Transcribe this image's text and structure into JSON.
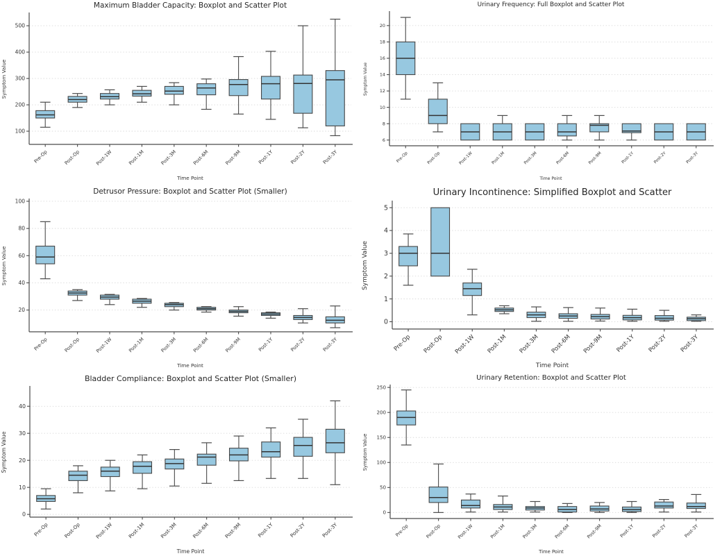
{
  "figure": {
    "background": "#ffffff",
    "palette": {
      "box_fill": "#97c8e0",
      "box_edge": "#454545",
      "median_line": "#333333",
      "whisker": "#4a4a4a",
      "grid_line": "#d9d9d9",
      "axis_line": "#4a4a4a",
      "tick_text": "#333333",
      "title_text": "#262626"
    }
  },
  "chart_data": [
    {
      "type": "boxplot",
      "title": "Maximum Bladder Capacity: Boxplot and Scatter Plot",
      "xlabel": "Time Point",
      "ylabel": "Symptom Value",
      "categories": [
        "Pre-Op",
        "Post-Op",
        "Post-1W",
        "Post-1M",
        "Post-3M",
        "Post-6M",
        "Post-9M",
        "Post-1Y",
        "Post-2Y",
        "Post-3Y"
      ],
      "yticks": [
        100,
        200,
        300,
        400,
        500
      ],
      "ylim": [
        50,
        545
      ],
      "grid": "dotted-horizontal",
      "legend": "none",
      "font_scale": 1.0,
      "boxes": [
        {
          "low": 115,
          "q1": 150,
          "med": 162,
          "q3": 178,
          "high": 210
        },
        {
          "low": 190,
          "q1": 210,
          "med": 220,
          "q3": 232,
          "high": 243
        },
        {
          "low": 200,
          "q1": 222,
          "med": 231,
          "q3": 243,
          "high": 257
        },
        {
          "low": 210,
          "q1": 233,
          "med": 242,
          "q3": 255,
          "high": 270
        },
        {
          "low": 200,
          "q1": 240,
          "med": 252,
          "q3": 270,
          "high": 284
        },
        {
          "low": 183,
          "q1": 238,
          "med": 264,
          "q3": 280,
          "high": 298
        },
        {
          "low": 165,
          "q1": 235,
          "med": 277,
          "q3": 296,
          "high": 383
        },
        {
          "low": 145,
          "q1": 222,
          "med": 280,
          "q3": 308,
          "high": 403
        },
        {
          "low": 113,
          "q1": 168,
          "med": 281,
          "q3": 313,
          "high": 500
        },
        {
          "low": 83,
          "q1": 120,
          "med": 295,
          "q3": 330,
          "high": 525
        }
      ]
    },
    {
      "type": "boxplot",
      "title": "Urinary Frequency: Full Boxplot and Scatter Plot",
      "xlabel": "Time Point",
      "ylabel": "Symptom Value",
      "categories": [
        "Pre-Op",
        "Post-Op",
        "Post-1W",
        "Post-1M",
        "Post-3M",
        "Post-6M",
        "Post-9M",
        "Post-1Y",
        "Post-2Y",
        "Post-3Y"
      ],
      "yticks": [
        6,
        8,
        10,
        12,
        14,
        16,
        18,
        20
      ],
      "ylim": [
        5.3,
        21.6
      ],
      "grid": "dotted-horizontal",
      "legend": "none",
      "font_scale": 0.85,
      "boxes": [
        {
          "low": 11,
          "q1": 14,
          "med": 16,
          "q3": 18,
          "high": 21
        },
        {
          "low": 7,
          "q1": 8,
          "med": 9,
          "q3": 11,
          "high": 13
        },
        {
          "low": 6,
          "q1": 6,
          "med": 7,
          "q3": 8,
          "high": 8
        },
        {
          "low": 6,
          "q1": 6,
          "med": 7,
          "q3": 8,
          "high": 9
        },
        {
          "low": 6,
          "q1": 6,
          "med": 7,
          "q3": 8,
          "high": 8
        },
        {
          "low": 6,
          "q1": 6.5,
          "med": 7,
          "q3": 8,
          "high": 9
        },
        {
          "low": 6,
          "q1": 7,
          "med": 7.8,
          "q3": 8,
          "high": 9
        },
        {
          "low": 6,
          "q1": 6.9,
          "med": 7.1,
          "q3": 8,
          "high": 8
        },
        {
          "low": 6,
          "q1": 6,
          "med": 7,
          "q3": 8,
          "high": 8
        },
        {
          "low": 6,
          "q1": 6,
          "med": 7,
          "q3": 8,
          "high": 8
        }
      ]
    },
    {
      "type": "boxplot",
      "title": "Detrusor Pressure: Boxplot and Scatter Plot (Smaller)",
      "xlabel": "Time Point",
      "ylabel": "Symptom Value",
      "categories": [
        "Pre-Op",
        "Post-Op",
        "Post-1W",
        "Post-1M",
        "Post-3M",
        "Post-6M",
        "Post-9M",
        "Post-1Y",
        "Post-2Y",
        "Post-3Y"
      ],
      "yticks": [
        20,
        40,
        60,
        80,
        100
      ],
      "ylim": [
        4,
        101
      ],
      "grid": "dotted-horizontal",
      "legend": "none",
      "font_scale": 1.0,
      "boxes": [
        {
          "low": 43,
          "q1": 54,
          "med": 59,
          "q3": 67,
          "high": 85
        },
        {
          "low": 27,
          "q1": 31,
          "med": 32.5,
          "q3": 34,
          "high": 35
        },
        {
          "low": 24,
          "q1": 28,
          "med": 29.5,
          "q3": 31,
          "high": 31.5
        },
        {
          "low": 22,
          "q1": 25,
          "med": 26.5,
          "q3": 28,
          "high": 28.5
        },
        {
          "low": 20,
          "q1": 22.5,
          "med": 24,
          "q3": 25,
          "high": 25.5
        },
        {
          "low": 18.5,
          "q1": 20,
          "med": 21,
          "q3": 22,
          "high": 22.5
        },
        {
          "low": 15.5,
          "q1": 18,
          "med": 19,
          "q3": 20,
          "high": 22.5
        },
        {
          "low": 14,
          "q1": 16,
          "med": 17,
          "q3": 18,
          "high": 18.5
        },
        {
          "low": 10.5,
          "q1": 13,
          "med": 14.5,
          "q3": 16,
          "high": 21
        },
        {
          "low": 7,
          "q1": 10.5,
          "med": 12.5,
          "q3": 15,
          "high": 23
        }
      ]
    },
    {
      "type": "boxplot",
      "title": "Urinary Incontinence: Simplified Boxplot and Scatter",
      "xlabel": "Time Point",
      "ylabel": "Symptom Value",
      "categories": [
        "Pre-Op",
        "Post-Op",
        "Post-1W",
        "Post-1M",
        "Post-3M",
        "Post-6M",
        "Post-9M",
        "Post-1Y",
        "Post-2Y",
        "Post-3Y"
      ],
      "yticks": [
        0,
        1,
        2,
        3,
        4,
        5
      ],
      "ylim": [
        -0.32,
        5.25
      ],
      "grid": "dotted-horizontal",
      "legend": "none",
      "font_scale": 1.25,
      "boxes": [
        {
          "low": 1.6,
          "q1": 2.45,
          "med": 3.0,
          "q3": 3.3,
          "high": 3.85
        },
        {
          "low": 2.0,
          "q1": 2.0,
          "med": 3.0,
          "q3": 5.0,
          "high": 5.0
        },
        {
          "low": 0.3,
          "q1": 1.15,
          "med": 1.45,
          "q3": 1.7,
          "high": 2.3
        },
        {
          "low": 0.35,
          "q1": 0.45,
          "med": 0.52,
          "q3": 0.6,
          "high": 0.7
        },
        {
          "low": 0.02,
          "q1": 0.18,
          "med": 0.3,
          "q3": 0.42,
          "high": 0.65
        },
        {
          "low": 0.02,
          "q1": 0.15,
          "med": 0.25,
          "q3": 0.35,
          "high": 0.62
        },
        {
          "low": 0.03,
          "q1": 0.12,
          "med": 0.22,
          "q3": 0.32,
          "high": 0.6
        },
        {
          "low": 0.02,
          "q1": 0.08,
          "med": 0.18,
          "q3": 0.28,
          "high": 0.55
        },
        {
          "low": 0.02,
          "q1": 0.07,
          "med": 0.15,
          "q3": 0.27,
          "high": 0.5
        },
        {
          "low": 0.02,
          "q1": 0.05,
          "med": 0.13,
          "q3": 0.2,
          "high": 0.3
        }
      ]
    },
    {
      "type": "boxplot",
      "title": "Bladder Compliance: Boxplot and Scatter Plot (Smaller)",
      "xlabel": "Time Point",
      "ylabel": "Symptom Value",
      "categories": [
        "Pre-Op",
        "Post-Op",
        "Post-1W",
        "Post-1M",
        "Post-3M",
        "Post-6M",
        "Post-9M",
        "Post-1Y",
        "Post-2Y",
        "Post-3Y"
      ],
      "yticks": [
        0,
        10,
        20,
        30,
        40
      ],
      "ylim": [
        -1,
        47
      ],
      "grid": "dotted-horizontal",
      "legend": "none",
      "font_scale": 1.05,
      "boxes": [
        {
          "low": 2,
          "q1": 4.8,
          "med": 5.8,
          "q3": 7,
          "high": 9.5
        },
        {
          "low": 8,
          "q1": 12.5,
          "med": 14.5,
          "q3": 16,
          "high": 18
        },
        {
          "low": 8.7,
          "q1": 14,
          "med": 16,
          "q3": 17.5,
          "high": 20
        },
        {
          "low": 9.5,
          "q1": 15.2,
          "med": 17.8,
          "q3": 19.5,
          "high": 22
        },
        {
          "low": 10.5,
          "q1": 16.8,
          "med": 18.8,
          "q3": 20.5,
          "high": 24
        },
        {
          "low": 11.5,
          "q1": 18.2,
          "med": 21.2,
          "q3": 22.3,
          "high": 26.5
        },
        {
          "low": 12.5,
          "q1": 19.8,
          "med": 22,
          "q3": 24.5,
          "high": 29
        },
        {
          "low": 13.3,
          "q1": 21.2,
          "med": 23.2,
          "q3": 26.8,
          "high": 32
        },
        {
          "low": 13.3,
          "q1": 21.5,
          "med": 25.5,
          "q3": 28.5,
          "high": 35.2
        },
        {
          "low": 11,
          "q1": 22.8,
          "med": 26.5,
          "q3": 31.5,
          "high": 42
        }
      ]
    },
    {
      "type": "boxplot",
      "title": "Urinary Retention: Boxplot and Scatter Plot",
      "xlabel": "Time Point",
      "ylabel": "Symptom Value",
      "categories": [
        "Pre-Op",
        "Post-Op",
        "Post-1W",
        "Post-1M",
        "Post-3M",
        "Post-6M",
        "Post-9M",
        "Post-1Y",
        "Post-2Y",
        "Post-3Y"
      ],
      "yticks": [
        0,
        50,
        100,
        150,
        200,
        250
      ],
      "ylim": [
        -12,
        253
      ],
      "grid": "dotted-horizontal",
      "legend": "none",
      "font_scale": 0.95,
      "boxes": [
        {
          "low": 135,
          "q1": 175,
          "med": 190,
          "q3": 203,
          "high": 245
        },
        {
          "low": 0,
          "q1": 20,
          "med": 30,
          "q3": 51,
          "high": 97
        },
        {
          "low": 1,
          "q1": 9,
          "med": 14,
          "q3": 25,
          "high": 37
        },
        {
          "low": 1,
          "q1": 6,
          "med": 11,
          "q3": 16,
          "high": 33
        },
        {
          "low": 1,
          "q1": 5,
          "med": 9,
          "q3": 12,
          "high": 22
        },
        {
          "low": 0,
          "q1": 1,
          "med": 6,
          "q3": 12,
          "high": 18
        },
        {
          "low": 0,
          "q1": 3,
          "med": 7,
          "q3": 13,
          "high": 20
        },
        {
          "low": 0,
          "q1": 2,
          "med": 6,
          "q3": 11,
          "high": 22
        },
        {
          "low": 1,
          "q1": 9,
          "med": 13,
          "q3": 21,
          "high": 26
        },
        {
          "low": 1,
          "q1": 8,
          "med": 12,
          "q3": 19,
          "high": 36
        }
      ]
    }
  ]
}
